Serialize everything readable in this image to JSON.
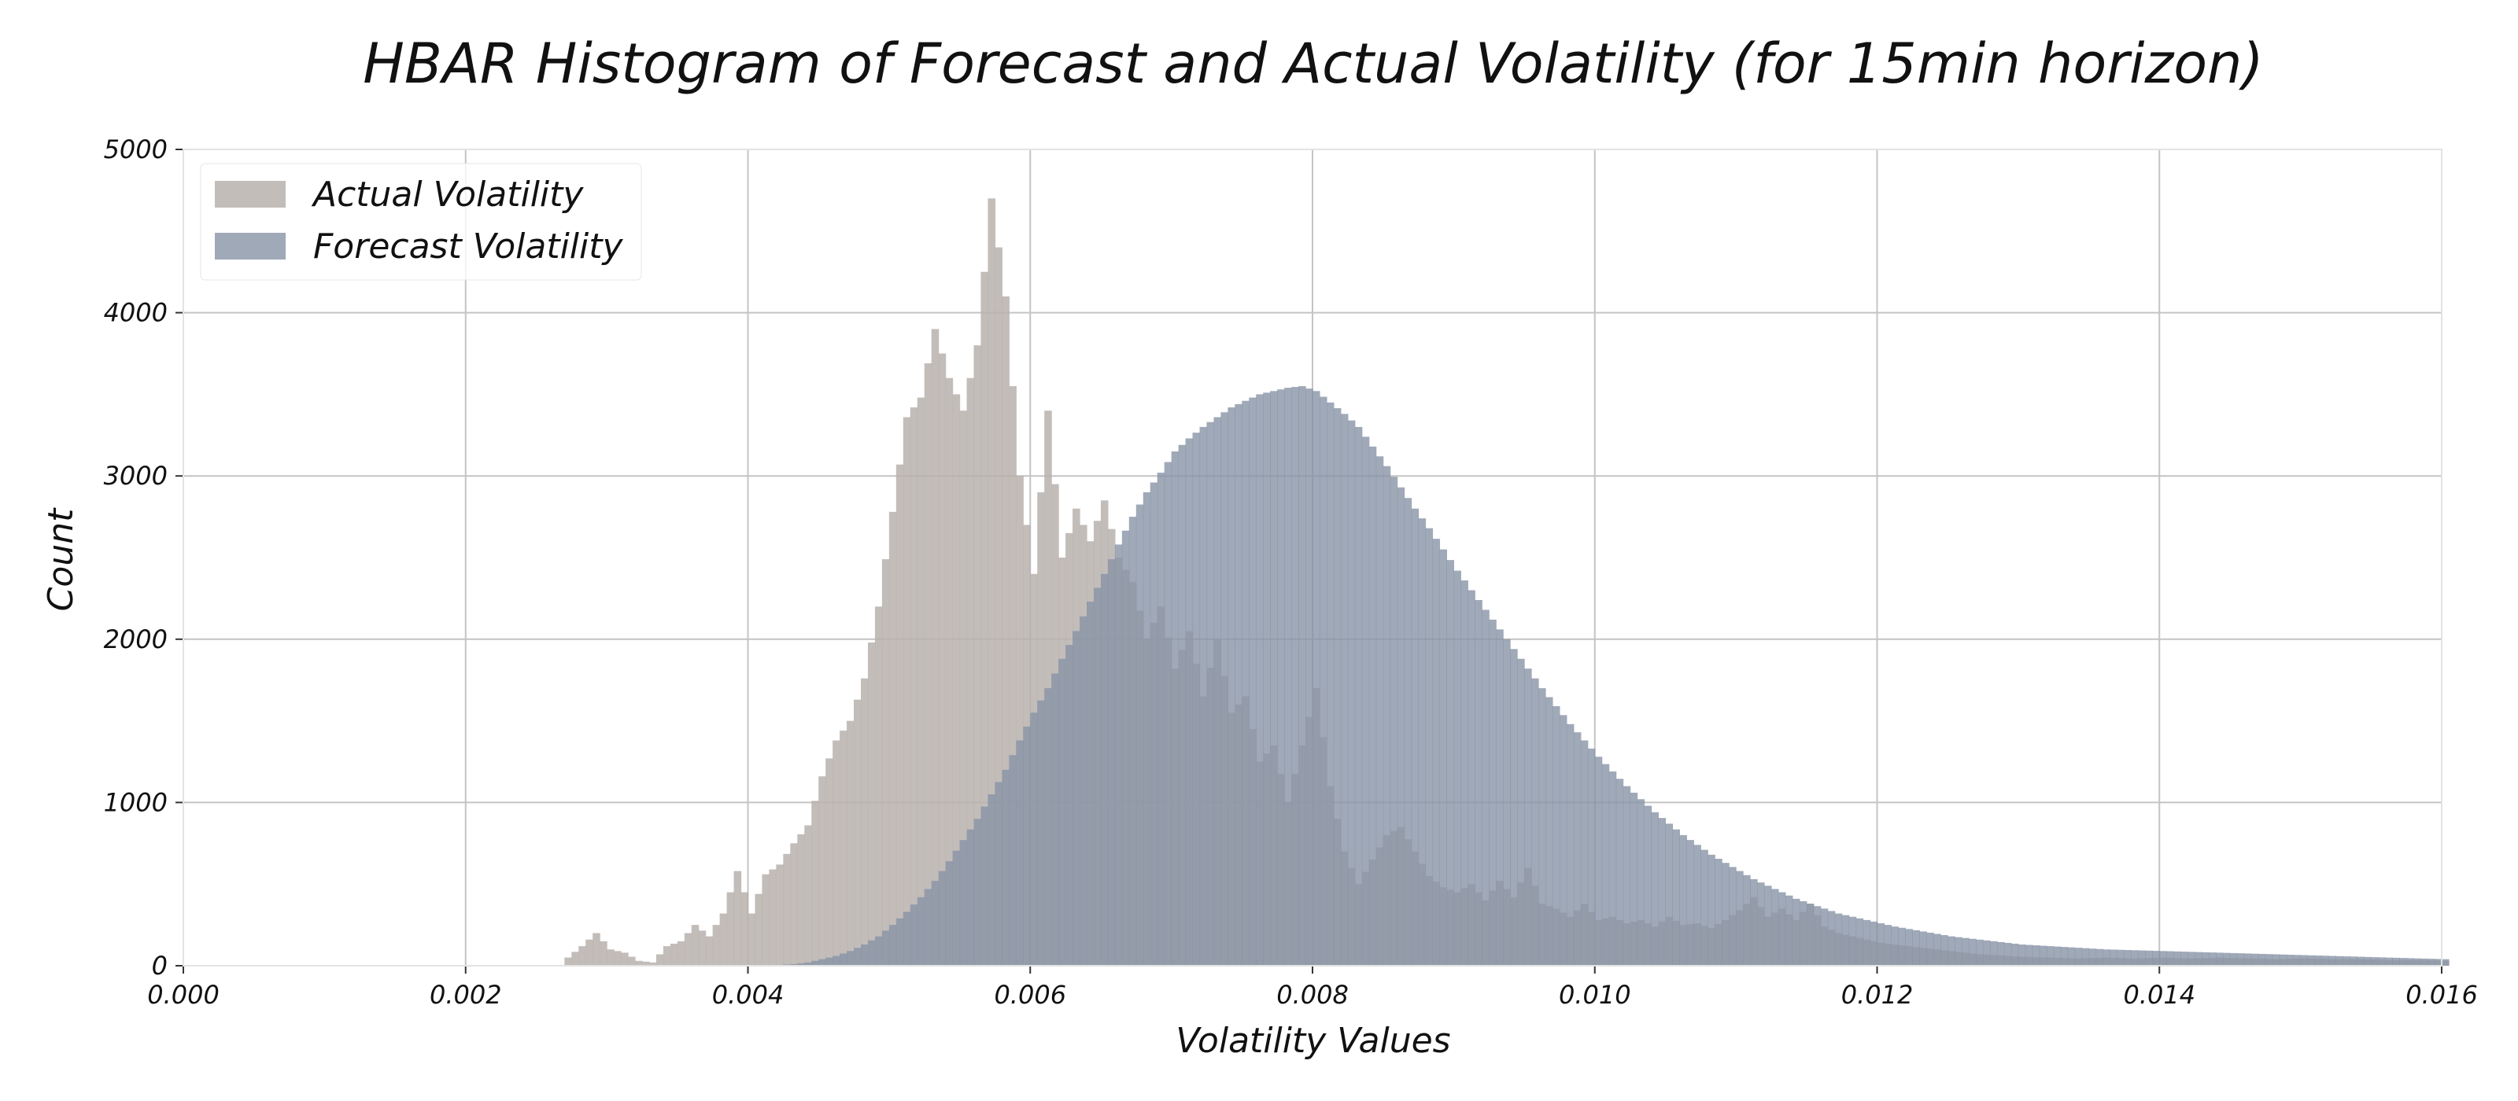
{
  "chart_data": {
    "type": "histogram",
    "title": "HBAR Histogram of Forecast and Actual Volatility (for 15min horizon)",
    "xlabel": "Volatility Values",
    "ylabel": "Count",
    "xlim": [
      0.0,
      0.016
    ],
    "ylim": [
      0,
      5000
    ],
    "x_ticks": [
      "0.000",
      "0.002",
      "0.004",
      "0.006",
      "0.008",
      "0.010",
      "0.012",
      "0.014",
      "0.016"
    ],
    "y_ticks": [
      "0",
      "1000",
      "2000",
      "3000",
      "4000",
      "5000"
    ],
    "grid": true,
    "legend_position": "top-left",
    "bin_width": 5e-05,
    "series": [
      {
        "name": "Actual Volatility",
        "color": "#b8b1ae",
        "opacity": 0.85,
        "points": [
          [
            0.0027,
            50
          ],
          [
            0.0028,
            120
          ],
          [
            0.0029,
            200
          ],
          [
            0.003,
            100
          ],
          [
            0.0031,
            80
          ],
          [
            0.0032,
            30
          ],
          [
            0.0033,
            20
          ],
          [
            0.0034,
            120
          ],
          [
            0.0035,
            150
          ],
          [
            0.0036,
            250
          ],
          [
            0.0037,
            180
          ],
          [
            0.0038,
            320
          ],
          [
            0.0039,
            580
          ],
          [
            0.004,
            320
          ],
          [
            0.0041,
            560
          ],
          [
            0.0042,
            620
          ],
          [
            0.0043,
            750
          ],
          [
            0.0044,
            860
          ],
          [
            0.0045,
            1160
          ],
          [
            0.0046,
            1380
          ],
          [
            0.0047,
            1500
          ],
          [
            0.0048,
            1760
          ],
          [
            0.0049,
            2200
          ],
          [
            0.005,
            2780
          ],
          [
            0.0051,
            3360
          ],
          [
            0.0052,
            3480
          ],
          [
            0.0053,
            3900
          ],
          [
            0.0054,
            3600
          ],
          [
            0.0055,
            3400
          ],
          [
            0.0056,
            3800
          ],
          [
            0.0057,
            4700
          ],
          [
            0.0058,
            4100
          ],
          [
            0.0059,
            3000
          ],
          [
            0.006,
            2400
          ],
          [
            0.0061,
            3400
          ],
          [
            0.0062,
            2500
          ],
          [
            0.0063,
            2800
          ],
          [
            0.0064,
            2600
          ],
          [
            0.0065,
            2850
          ],
          [
            0.0066,
            2500
          ],
          [
            0.0067,
            2350
          ],
          [
            0.0068,
            2000
          ],
          [
            0.0069,
            2200
          ],
          [
            0.007,
            1820
          ],
          [
            0.0071,
            2050
          ],
          [
            0.0072,
            1650
          ],
          [
            0.0073,
            2000
          ],
          [
            0.0074,
            1550
          ],
          [
            0.0075,
            1650
          ],
          [
            0.0076,
            1250
          ],
          [
            0.0077,
            1350
          ],
          [
            0.0078,
            1000
          ],
          [
            0.0079,
            1350
          ],
          [
            0.008,
            1700
          ],
          [
            0.0081,
            1100
          ],
          [
            0.0082,
            700
          ],
          [
            0.0083,
            500
          ],
          [
            0.0084,
            650
          ],
          [
            0.0085,
            800
          ],
          [
            0.0086,
            850
          ],
          [
            0.0087,
            700
          ],
          [
            0.0088,
            550
          ],
          [
            0.0089,
            480
          ],
          [
            0.009,
            450
          ],
          [
            0.0091,
            500
          ],
          [
            0.0092,
            400
          ],
          [
            0.0093,
            520
          ],
          [
            0.0094,
            420
          ],
          [
            0.0095,
            600
          ],
          [
            0.0096,
            380
          ],
          [
            0.0097,
            350
          ],
          [
            0.0098,
            300
          ],
          [
            0.0099,
            380
          ],
          [
            0.01,
            280
          ],
          [
            0.0101,
            300
          ],
          [
            0.0102,
            260
          ],
          [
            0.0103,
            280
          ],
          [
            0.0104,
            240
          ],
          [
            0.0105,
            300
          ],
          [
            0.0106,
            250
          ],
          [
            0.0107,
            260
          ],
          [
            0.0108,
            230
          ],
          [
            0.0109,
            280
          ],
          [
            0.011,
            340
          ],
          [
            0.0111,
            420
          ],
          [
            0.0112,
            300
          ],
          [
            0.0113,
            350
          ],
          [
            0.0114,
            280
          ],
          [
            0.0115,
            380
          ],
          [
            0.0116,
            240
          ],
          [
            0.0117,
            200
          ],
          [
            0.0118,
            180
          ],
          [
            0.0119,
            160
          ],
          [
            0.012,
            140
          ],
          [
            0.0121,
            130
          ],
          [
            0.0122,
            120
          ],
          [
            0.0123,
            110
          ],
          [
            0.0124,
            100
          ],
          [
            0.0125,
            90
          ],
          [
            0.0126,
            80
          ],
          [
            0.0127,
            70
          ],
          [
            0.0128,
            65
          ],
          [
            0.0129,
            60
          ],
          [
            0.013,
            55
          ],
          [
            0.0132,
            50
          ],
          [
            0.0134,
            45
          ],
          [
            0.0136,
            50
          ],
          [
            0.0138,
            45
          ],
          [
            0.014,
            50
          ],
          [
            0.0142,
            45
          ],
          [
            0.0144,
            50
          ],
          [
            0.0146,
            45
          ],
          [
            0.0148,
            40
          ],
          [
            0.015,
            45
          ],
          [
            0.0152,
            40
          ],
          [
            0.0154,
            40
          ],
          [
            0.0156,
            35
          ],
          [
            0.0158,
            35
          ],
          [
            0.016,
            30
          ]
        ]
      },
      {
        "name": "Forecast Volatility",
        "color": "#8893a6",
        "opacity": 0.8,
        "points": [
          [
            0.0041,
            0
          ],
          [
            0.0042,
            5
          ],
          [
            0.0043,
            10
          ],
          [
            0.0044,
            20
          ],
          [
            0.0045,
            40
          ],
          [
            0.0046,
            60
          ],
          [
            0.0047,
            90
          ],
          [
            0.0048,
            130
          ],
          [
            0.0049,
            180
          ],
          [
            0.005,
            250
          ],
          [
            0.0051,
            330
          ],
          [
            0.0052,
            420
          ],
          [
            0.0053,
            520
          ],
          [
            0.0054,
            640
          ],
          [
            0.0055,
            770
          ],
          [
            0.0056,
            900
          ],
          [
            0.0057,
            1050
          ],
          [
            0.0058,
            1200
          ],
          [
            0.0059,
            1380
          ],
          [
            0.006,
            1550
          ],
          [
            0.0061,
            1700
          ],
          [
            0.0062,
            1880
          ],
          [
            0.0063,
            2050
          ],
          [
            0.0064,
            2230
          ],
          [
            0.0065,
            2400
          ],
          [
            0.0066,
            2580
          ],
          [
            0.0067,
            2750
          ],
          [
            0.0068,
            2900
          ],
          [
            0.0069,
            3020
          ],
          [
            0.007,
            3150
          ],
          [
            0.0071,
            3230
          ],
          [
            0.0072,
            3300
          ],
          [
            0.0073,
            3360
          ],
          [
            0.0074,
            3420
          ],
          [
            0.0075,
            3460
          ],
          [
            0.0076,
            3500
          ],
          [
            0.0077,
            3520
          ],
          [
            0.0078,
            3540
          ],
          [
            0.0079,
            3550
          ],
          [
            0.008,
            3520
          ],
          [
            0.0081,
            3450
          ],
          [
            0.0082,
            3380
          ],
          [
            0.0083,
            3300
          ],
          [
            0.0084,
            3180
          ],
          [
            0.0085,
            3060
          ],
          [
            0.0086,
            2930
          ],
          [
            0.0087,
            2800
          ],
          [
            0.0088,
            2680
          ],
          [
            0.0089,
            2550
          ],
          [
            0.009,
            2420
          ],
          [
            0.0091,
            2300
          ],
          [
            0.0092,
            2180
          ],
          [
            0.0093,
            2060
          ],
          [
            0.0094,
            1940
          ],
          [
            0.0095,
            1820
          ],
          [
            0.0096,
            1700
          ],
          [
            0.0097,
            1590
          ],
          [
            0.0098,
            1480
          ],
          [
            0.0099,
            1380
          ],
          [
            0.01,
            1280
          ],
          [
            0.0101,
            1190
          ],
          [
            0.0102,
            1100
          ],
          [
            0.0103,
            1020
          ],
          [
            0.0104,
            940
          ],
          [
            0.0105,
            870
          ],
          [
            0.0106,
            800
          ],
          [
            0.0107,
            740
          ],
          [
            0.0108,
            680
          ],
          [
            0.0109,
            630
          ],
          [
            0.011,
            580
          ],
          [
            0.0111,
            530
          ],
          [
            0.0112,
            490
          ],
          [
            0.0113,
            450
          ],
          [
            0.0114,
            410
          ],
          [
            0.0115,
            380
          ],
          [
            0.0116,
            350
          ],
          [
            0.0117,
            320
          ],
          [
            0.0118,
            300
          ],
          [
            0.0119,
            280
          ],
          [
            0.012,
            260
          ],
          [
            0.0121,
            240
          ],
          [
            0.0122,
            225
          ],
          [
            0.0123,
            210
          ],
          [
            0.0124,
            195
          ],
          [
            0.0125,
            180
          ],
          [
            0.0126,
            170
          ],
          [
            0.0127,
            160
          ],
          [
            0.0128,
            150
          ],
          [
            0.0129,
            140
          ],
          [
            0.013,
            130
          ],
          [
            0.0132,
            120
          ],
          [
            0.0134,
            110
          ],
          [
            0.0136,
            100
          ],
          [
            0.0138,
            95
          ],
          [
            0.014,
            90
          ],
          [
            0.0142,
            85
          ],
          [
            0.0144,
            80
          ],
          [
            0.0146,
            75
          ],
          [
            0.0148,
            70
          ],
          [
            0.015,
            65
          ],
          [
            0.0152,
            60
          ],
          [
            0.0154,
            55
          ],
          [
            0.0156,
            50
          ],
          [
            0.0158,
            45
          ],
          [
            0.016,
            40
          ]
        ]
      }
    ]
  }
}
